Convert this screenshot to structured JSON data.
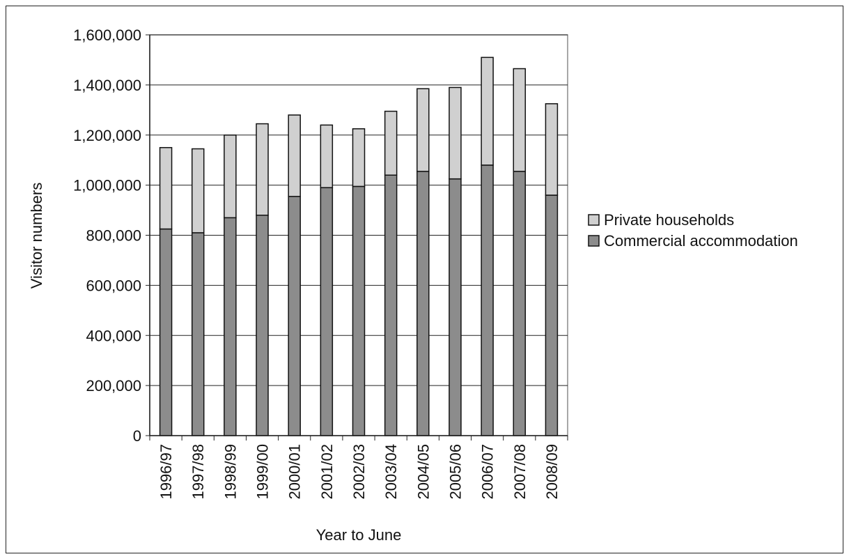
{
  "chart_data": {
    "type": "bar",
    "stacked": true,
    "xlabel": "Year to June",
    "ylabel": "Visitor numbers",
    "ylim": [
      0,
      1600000
    ],
    "yticks": [
      0,
      200000,
      400000,
      600000,
      800000,
      1000000,
      1200000,
      1400000,
      1600000
    ],
    "ytick_labels": [
      "0",
      "200,000",
      "400,000",
      "600,000",
      "800,000",
      "1,000,000",
      "1,200,000",
      "1,400,000",
      "1,600,000"
    ],
    "grid": true,
    "legend_position": "right",
    "categories": [
      "1996/97",
      "1997/98",
      "1998/99",
      "1999/00",
      "2000/01",
      "2001/02",
      "2002/03",
      "2003/04",
      "2004/05",
      "2005/06",
      "2006/07",
      "2007/08",
      "2008/09"
    ],
    "series": [
      {
        "name": "Commercial accommodation",
        "color": "#8c8c8c",
        "values": [
          825000,
          810000,
          870000,
          880000,
          955000,
          990000,
          995000,
          1040000,
          1055000,
          1025000,
          1080000,
          1055000,
          960000
        ]
      },
      {
        "name": "Private households",
        "color": "#d0d0d0",
        "values": [
          325000,
          335000,
          330000,
          365000,
          325000,
          250000,
          230000,
          255000,
          330000,
          365000,
          430000,
          410000,
          365000
        ]
      }
    ],
    "legend_order": [
      "Private households",
      "Commercial accommodation"
    ]
  }
}
